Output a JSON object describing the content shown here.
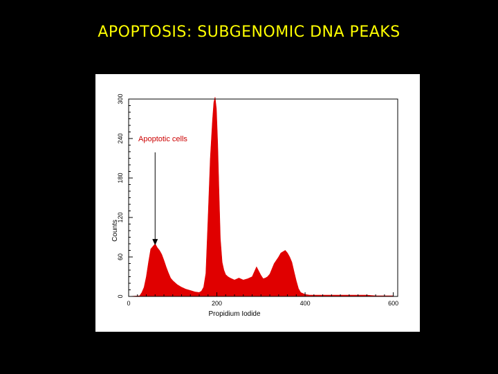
{
  "slide": {
    "title": "APOPTOSIS: SUBGENOMIC DNA PEAKS"
  },
  "colors": {
    "background": "#000000",
    "title": "#ffff00",
    "histogram_fill": "#e00000",
    "annotation": "#cc0000",
    "panel": "#ffffff"
  },
  "chart_data": {
    "type": "area",
    "title": "",
    "xlabel": "Propidium Iodide",
    "ylabel": "Counts",
    "xlim": [
      0,
      610
    ],
    "ylim": [
      0,
      300
    ],
    "x_ticks": [
      0,
      200,
      400,
      600
    ],
    "y_ticks": [
      0,
      60,
      120,
      180,
      240,
      300
    ],
    "grid": false,
    "series": [
      {
        "x": [
          0,
          25,
          30,
          35,
          40,
          45,
          50,
          55,
          60,
          65,
          70,
          75,
          80,
          85,
          90,
          95,
          100,
          110,
          120,
          130,
          140,
          150,
          160,
          165,
          170,
          175,
          180,
          185,
          190,
          193,
          196,
          199,
          202,
          205,
          208,
          212,
          216,
          220,
          225,
          230,
          240,
          250,
          260,
          270,
          280,
          290,
          300,
          305,
          310,
          315,
          320,
          330,
          340,
          345,
          350,
          355,
          360,
          365,
          370,
          375,
          380,
          385,
          390,
          400,
          410,
          420,
          440,
          460,
          480,
          500,
          520,
          540,
          560,
          580,
          600
        ],
        "y": [
          0,
          1,
          6,
          14,
          30,
          52,
          72,
          76,
          80,
          74,
          70,
          64,
          55,
          45,
          36,
          28,
          24,
          18,
          14,
          11,
          9,
          7,
          6,
          8,
          14,
          35,
          120,
          210,
          268,
          295,
          303,
          285,
          232,
          158,
          88,
          52,
          40,
          33,
          30,
          28,
          25,
          28,
          25,
          27,
          30,
          45,
          32,
          27,
          28,
          30,
          34,
          50,
          60,
          66,
          68,
          70,
          66,
          60,
          52,
          38,
          24,
          12,
          6,
          3,
          2,
          2,
          2,
          2,
          2,
          2,
          2,
          2,
          1,
          1,
          1
        ]
      }
    ],
    "annotations": [
      {
        "text": "Apoptotic cells",
        "x": 60,
        "y": 82
      }
    ]
  }
}
